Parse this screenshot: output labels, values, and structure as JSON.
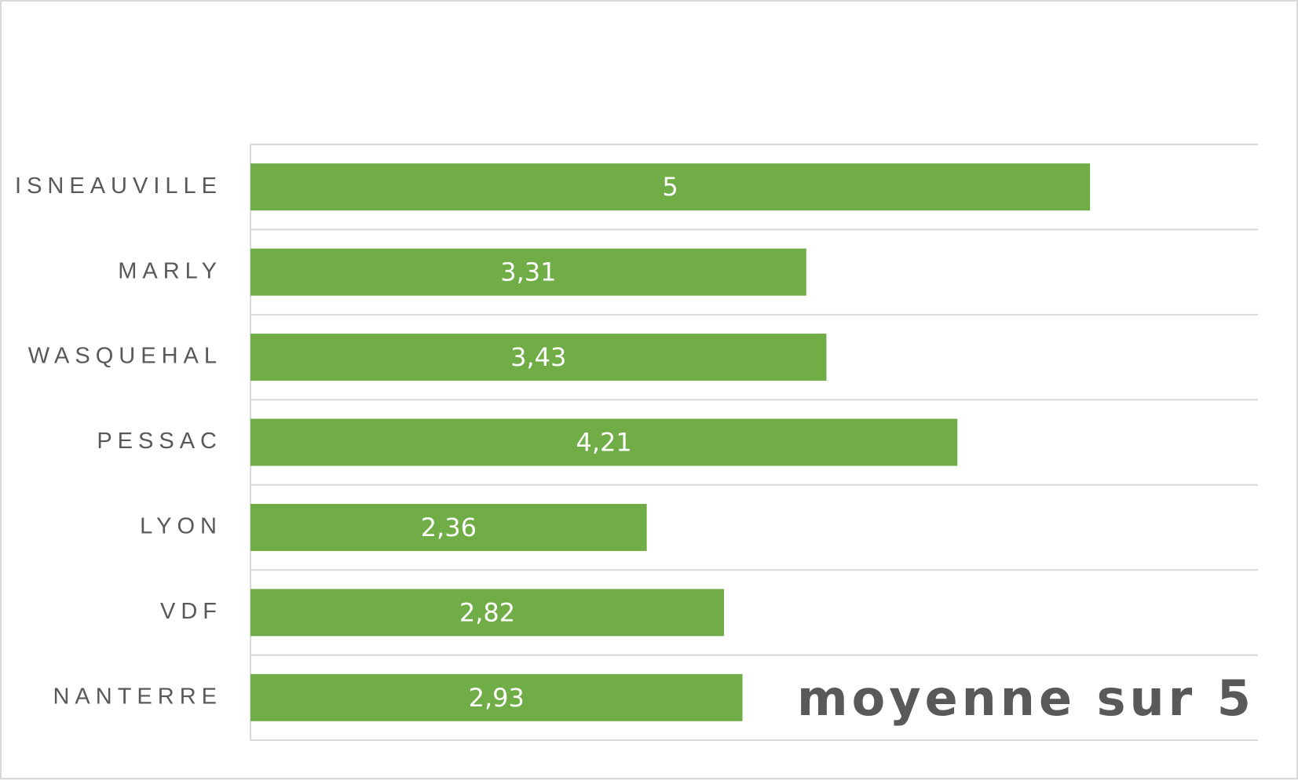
{
  "chart_data": {
    "type": "bar",
    "orientation": "horizontal",
    "title": "",
    "xlabel": "",
    "ylabel": "",
    "categories": [
      "ISNEAUVILLE",
      "MARLY",
      "WASQUEHAL",
      "PESSAC",
      "LYON",
      "VDF",
      "NANTERRE"
    ],
    "values": [
      5,
      3.31,
      3.43,
      4.21,
      2.36,
      2.82,
      2.93
    ],
    "data_labels": [
      "5",
      "3,31",
      "3,43",
      "4,21",
      "2,36",
      "2,82",
      "2,93"
    ],
    "xlim": [
      0,
      6
    ],
    "grid": true,
    "bar_color": "#70ad47",
    "annotation": "moyenne sur 5"
  }
}
